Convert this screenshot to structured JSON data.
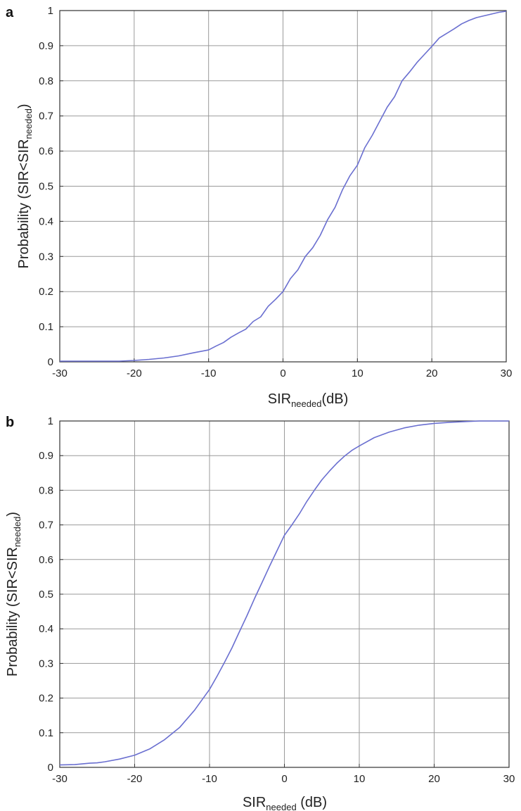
{
  "chart_data": [
    {
      "type": "line",
      "panel_label": "a",
      "xlabel": {
        "main": "SIR",
        "sub": "needed",
        "suffix": "(dB)"
      },
      "ylabel": {
        "prefix": "Probability (SIR<SIR",
        "sub": "needed",
        "suffix": ")"
      },
      "xlim": [
        -30,
        30
      ],
      "ylim": [
        0,
        1
      ],
      "xticks": [
        -30,
        -20,
        -10,
        0,
        10,
        20,
        30
      ],
      "yticks": [
        0,
        0.1,
        0.2,
        0.3,
        0.4,
        0.5,
        0.6,
        0.7,
        0.8,
        0.9,
        1
      ],
      "grid": true,
      "line_color": "#6a6fd0",
      "series": [
        {
          "x": [
            -30,
            -26,
            -24,
            -22,
            -20,
            -18,
            -16,
            -14,
            -12,
            -10,
            -9,
            -8,
            -7,
            -6,
            -5,
            -4,
            -3,
            -2,
            -1,
            0,
            1,
            2,
            3,
            4,
            5,
            6,
            7,
            8,
            9,
            10,
            11,
            12,
            13,
            14,
            15,
            16,
            17,
            18,
            19,
            20,
            21,
            22,
            23,
            24,
            25,
            26,
            27,
            28,
            29,
            30
          ],
          "y": [
            0.002,
            0.002,
            0.002,
            0.002,
            0.004,
            0.007,
            0.011,
            0.017,
            0.026,
            0.034,
            0.045,
            0.055,
            0.07,
            0.082,
            0.093,
            0.115,
            0.128,
            0.158,
            0.178,
            0.2,
            0.237,
            0.262,
            0.3,
            0.325,
            0.36,
            0.405,
            0.44,
            0.49,
            0.53,
            0.56,
            0.61,
            0.645,
            0.685,
            0.725,
            0.755,
            0.8,
            0.825,
            0.852,
            0.875,
            0.898,
            0.922,
            0.935,
            0.948,
            0.962,
            0.972,
            0.98,
            0.985,
            0.99,
            0.995,
            0.998
          ]
        }
      ]
    },
    {
      "type": "line",
      "panel_label": "b",
      "xlabel": {
        "main": "SIR",
        "sub": "needed",
        "suffix": " (dB)"
      },
      "ylabel": {
        "prefix": "Probability (SIR<SIR",
        "sub": "needed",
        "suffix": ")"
      },
      "xlim": [
        -30,
        30
      ],
      "ylim": [
        0,
        1
      ],
      "xticks": [
        -30,
        -20,
        -10,
        0,
        10,
        20,
        30
      ],
      "yticks": [
        0,
        0.1,
        0.2,
        0.3,
        0.4,
        0.5,
        0.6,
        0.7,
        0.8,
        0.9,
        1
      ],
      "grid": true,
      "line_color": "#6a6fd0",
      "series": [
        {
          "x": [
            -30,
            -28,
            -26,
            -25,
            -24,
            -22,
            -20,
            -18,
            -16,
            -14,
            -12,
            -10,
            -9,
            -8,
            -7,
            -6,
            -5,
            -4,
            -3,
            -2,
            -1,
            0,
            1,
            2,
            3,
            4,
            5,
            6,
            7,
            8,
            9,
            10,
            12,
            14,
            16,
            18,
            20,
            22,
            24,
            25,
            26,
            28,
            30
          ],
          "y": [
            0.007,
            0.008,
            0.012,
            0.013,
            0.016,
            0.024,
            0.035,
            0.053,
            0.08,
            0.115,
            0.165,
            0.225,
            0.263,
            0.303,
            0.345,
            0.392,
            0.438,
            0.487,
            0.533,
            0.58,
            0.625,
            0.67,
            0.7,
            0.732,
            0.768,
            0.8,
            0.83,
            0.855,
            0.878,
            0.898,
            0.915,
            0.928,
            0.952,
            0.968,
            0.98,
            0.988,
            0.993,
            0.996,
            0.998,
            0.999,
            1.0,
            1.0,
            1.0
          ]
        }
      ]
    }
  ]
}
